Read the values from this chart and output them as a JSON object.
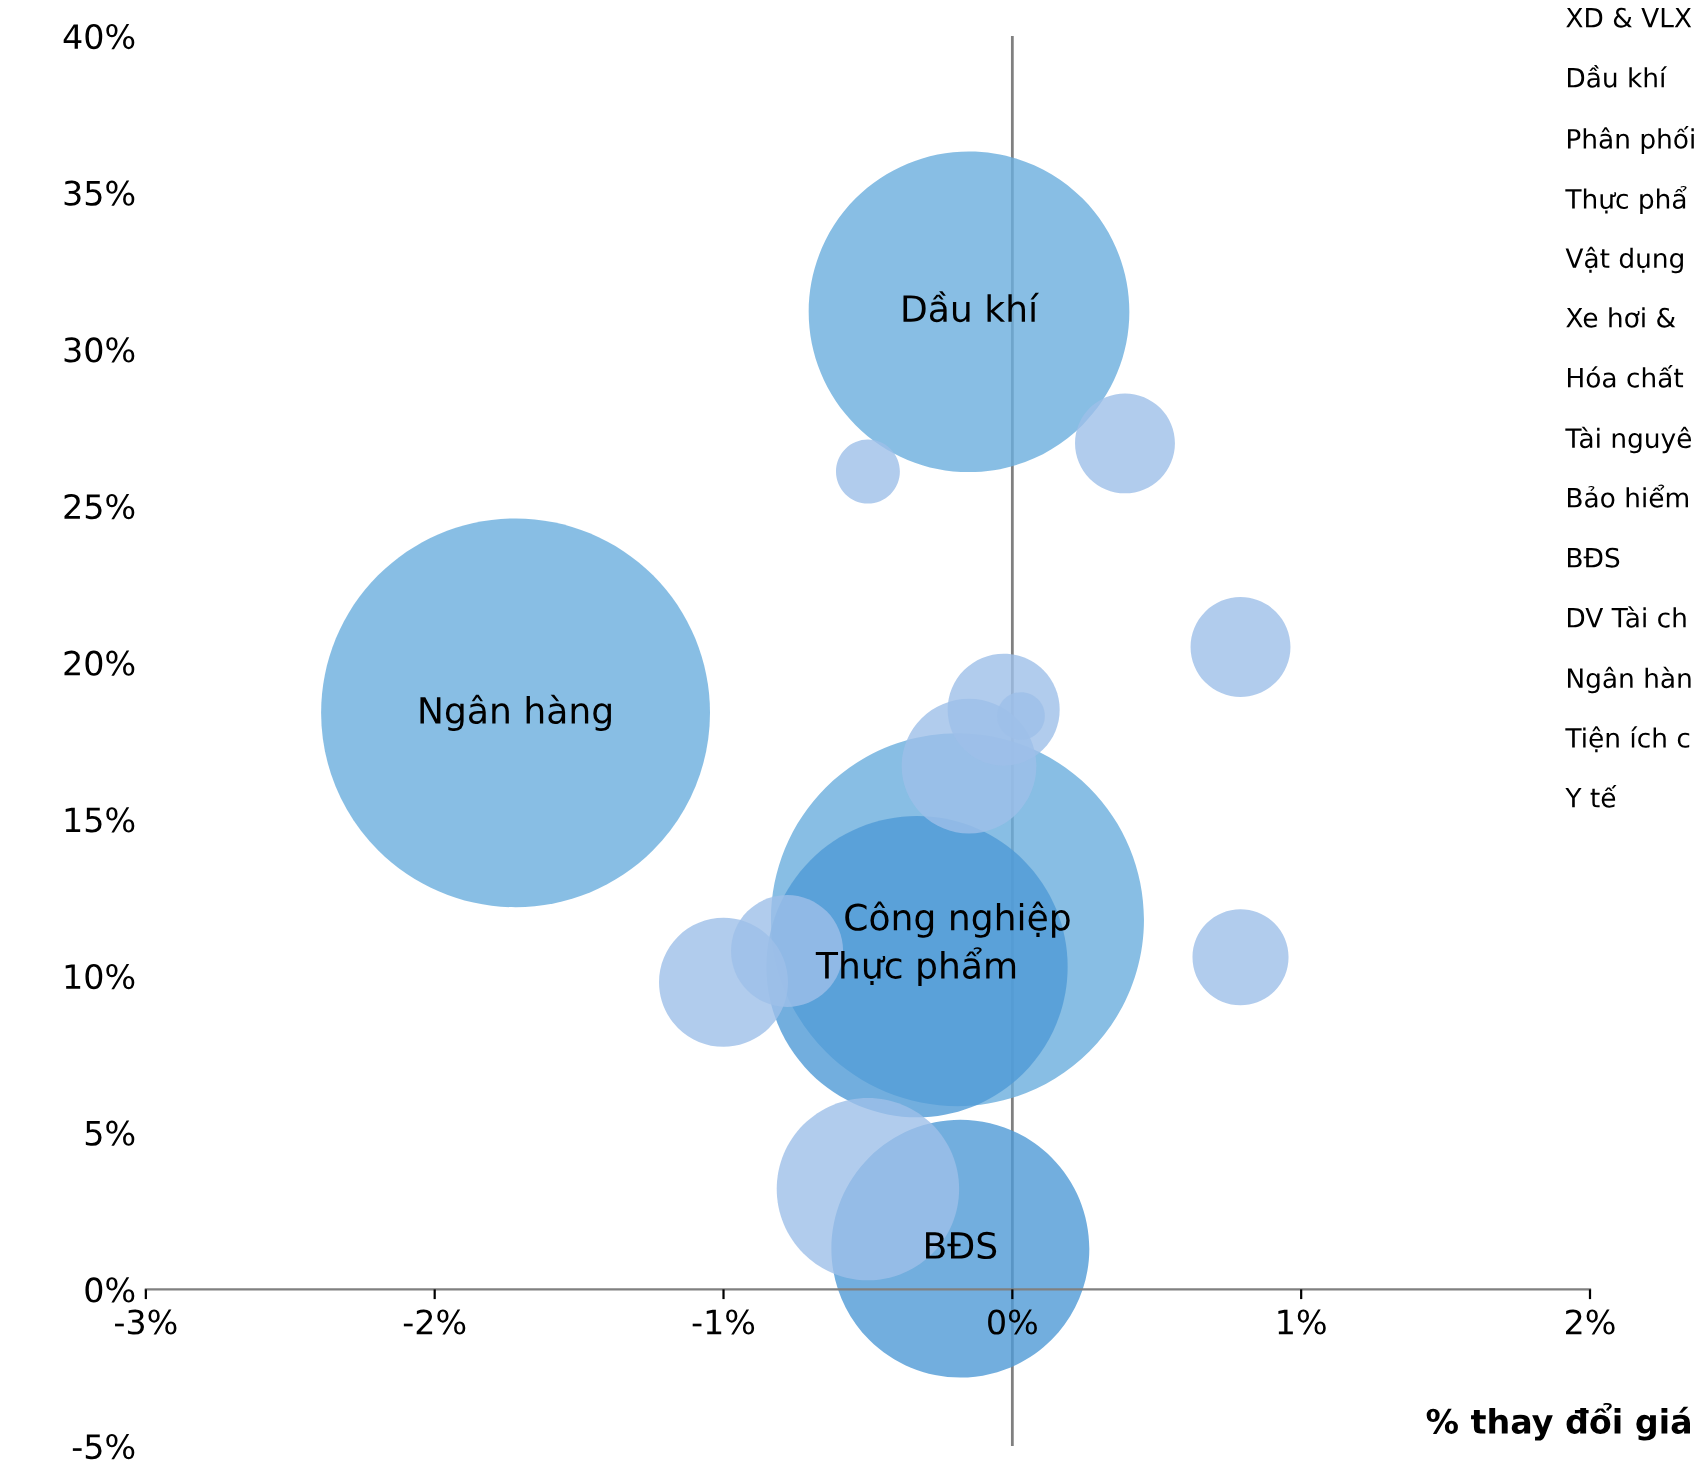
{
  "chart_data": {
    "type": "bubble",
    "xlabel": "% thay đổi giá",
    "x": [
      -0.15,
      -0.5,
      0.39,
      0.79,
      -0.03,
      0.03,
      -0.15,
      -1.72,
      -0.19,
      -0.33,
      -0.78,
      -1.0,
      0.79,
      -0.5,
      -0.18
    ],
    "values": [
      31.2,
      26.1,
      27.0,
      20.5,
      18.5,
      18.3,
      16.7,
      18.4,
      11.8,
      10.3,
      10.8,
      9.8,
      10.6,
      3.2,
      1.3
    ],
    "sizes": [
      0.68,
      0.027,
      0.066,
      0.066,
      0.083,
      0.015,
      0.12,
      1,
      0.92,
      0.6,
      0.083,
      0.11,
      0.061,
      0.22,
      0.44
    ],
    "colors": [
      "#6aaedd",
      "#9dbfe8",
      "#9dbfe8",
      "#9dbfe8",
      "#9dbfe8",
      "#9dbfe8",
      "#9dbfe8",
      "#6aaedd",
      "#6aaedd",
      "#4f9ad6",
      "#9dbfe8",
      "#9dbfe8",
      "#9dbfe8",
      "#9dbfe8",
      "#4f9ad6"
    ],
    "xlim": [
      -3,
      2
    ],
    "ylim": [
      -5,
      40
    ],
    "xticks": [
      {
        "value": -3,
        "label": "-3%"
      },
      {
        "value": -2,
        "label": "-2%"
      },
      {
        "value": -1,
        "label": "-1%"
      },
      {
        "value": 0,
        "label": "0%"
      },
      {
        "value": 1,
        "label": "1%"
      },
      {
        "value": 2,
        "label": "2%"
      }
    ],
    "yticks": [
      {
        "value": -5,
        "label": "-5%"
      },
      {
        "value": 0,
        "label": "0%"
      },
      {
        "value": 5,
        "label": "5%"
      },
      {
        "value": 10,
        "label": "10%"
      },
      {
        "value": 15,
        "label": "15%"
      },
      {
        "value": 20,
        "label": "20%"
      },
      {
        "value": 25,
        "label": "25%"
      },
      {
        "value": 30,
        "label": "30%"
      },
      {
        "value": 35,
        "label": "35%"
      },
      {
        "value": 40,
        "label": "40%"
      }
    ],
    "ref_lines": [
      {
        "axis": "x",
        "value": 0
      }
    ],
    "grid": false,
    "legend": false,
    "annotations": [
      {
        "text": "Dầu khí",
        "x": -0.15,
        "y": 31.2
      },
      {
        "text": "Ngân hàng",
        "x": -1.72,
        "y": 18.4
      },
      {
        "text": "Công nghiệp",
        "x": -0.19,
        "y": 11.8
      },
      {
        "text": "Thực phẩm",
        "x": -0.33,
        "y": 10.3
      },
      {
        "text": "BĐS",
        "x": -0.18,
        "y": 1.3
      },
      "XD & VLX",
      "Dầu khí",
      "Phân phối",
      "Thực phẩ",
      "Vật dụng",
      "Xe hơi &",
      "Hóa chất",
      "Tài nguyê",
      "Bảo hiểm",
      "BĐS",
      "DV Tài ch",
      "Ngân hàn",
      "Tiện ích c",
      "Y tế"
    ]
  }
}
